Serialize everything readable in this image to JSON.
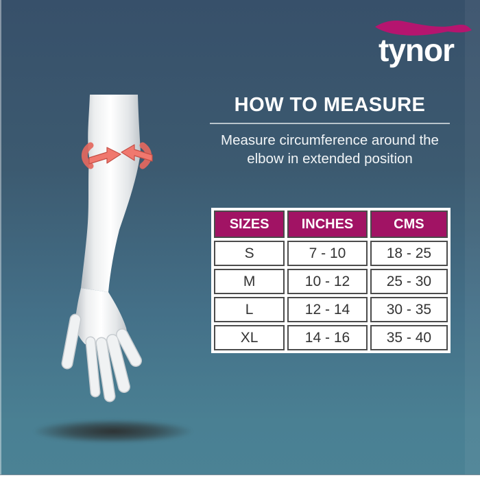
{
  "brand": {
    "name": "tynor",
    "swoosh_color": "#b5156f"
  },
  "header": {
    "title": "HOW TO MEASURE",
    "subtitle_lines": [
      "Measure circumference around the",
      "elbow in extended position"
    ]
  },
  "size_table": {
    "columns": [
      "SIZES",
      "INCHES",
      "CMS"
    ],
    "rows": [
      [
        "S",
        "7 - 10",
        "18 - 25"
      ],
      [
        "M",
        "10 - 12",
        "25 - 30"
      ],
      [
        "L",
        "12 - 14",
        "30 - 35"
      ],
      [
        "XL",
        "14 - 16",
        "35 - 40"
      ]
    ]
  },
  "illustration": {
    "description": "3D white arm with red circumference measuring arrows around the elbow",
    "arrow_color": "#f0786e"
  },
  "colors": {
    "background_top": "#37506a",
    "background_bottom": "#4b8295",
    "table_header_bg": "#a11364",
    "heading_text": "#ffffff"
  }
}
